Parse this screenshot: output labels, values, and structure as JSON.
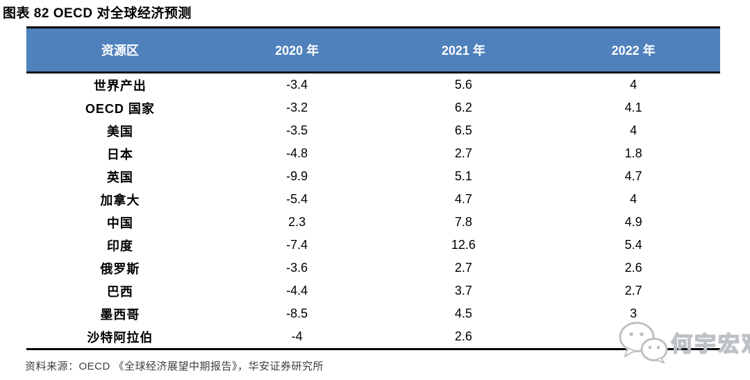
{
  "title": "图表 82 OECD 对全球经济预测",
  "table": {
    "columns": [
      "资源区",
      "2020 年",
      "2021 年",
      "2022 年"
    ],
    "rows": [
      [
        "世界产出",
        "-3.4",
        "5.6",
        "4"
      ],
      [
        "OECD 国家",
        "-3.2",
        "6.2",
        "4.1"
      ],
      [
        "美国",
        "-3.5",
        "6.5",
        "4"
      ],
      [
        "日本",
        "-4.8",
        "2.7",
        "1.8"
      ],
      [
        "英国",
        "-9.9",
        "5.1",
        "4.7"
      ],
      [
        "加拿大",
        "-5.4",
        "4.7",
        "4"
      ],
      [
        "中国",
        "2.3",
        "7.8",
        "4.9"
      ],
      [
        "印度",
        "-7.4",
        "12.6",
        "5.4"
      ],
      [
        "俄罗斯",
        "-3.6",
        "2.7",
        "2.6"
      ],
      [
        "巴西",
        "-4.4",
        "3.7",
        "2.7"
      ],
      [
        "墨西哥",
        "-8.5",
        "4.5",
        "3"
      ],
      [
        "沙特阿拉伯",
        "-4",
        "2.6",
        "3.9"
      ]
    ],
    "header_bg": "#4F81BD",
    "header_text_color": "#FFFFFF"
  },
  "source": "资料来源：OECD 《全球经济展望中期报告》，华安证券研究所",
  "watermark": {
    "text": "何宇宏观",
    "icon": "wechat-icon",
    "color": "#bdc1c6"
  },
  "chart_data": {
    "type": "table",
    "title": "图表 82 OECD 对全球经济预测",
    "categories": [
      "世界产出",
      "OECD 国家",
      "美国",
      "日本",
      "英国",
      "加拿大",
      "中国",
      "印度",
      "俄罗斯",
      "巴西",
      "墨西哥",
      "沙特阿拉伯"
    ],
    "series": [
      {
        "name": "2020 年",
        "values": [
          -3.4,
          -3.2,
          -3.5,
          -4.8,
          -9.9,
          -5.4,
          2.3,
          -7.4,
          -3.6,
          -4.4,
          -8.5,
          -4
        ]
      },
      {
        "name": "2021 年",
        "values": [
          5.6,
          6.2,
          6.5,
          2.7,
          5.1,
          4.7,
          7.8,
          12.6,
          2.7,
          3.7,
          4.5,
          2.6
        ]
      },
      {
        "name": "2022 年",
        "values": [
          4,
          4.1,
          4,
          1.8,
          4.7,
          4,
          4.9,
          5.4,
          2.6,
          2.7,
          3,
          3.9
        ]
      }
    ],
    "source": "资料来源：OECD 《全球经济展望中期报告》，华安证券研究所",
    "layout": {
      "header_bg": "#4F81BD",
      "grid": false
    }
  }
}
